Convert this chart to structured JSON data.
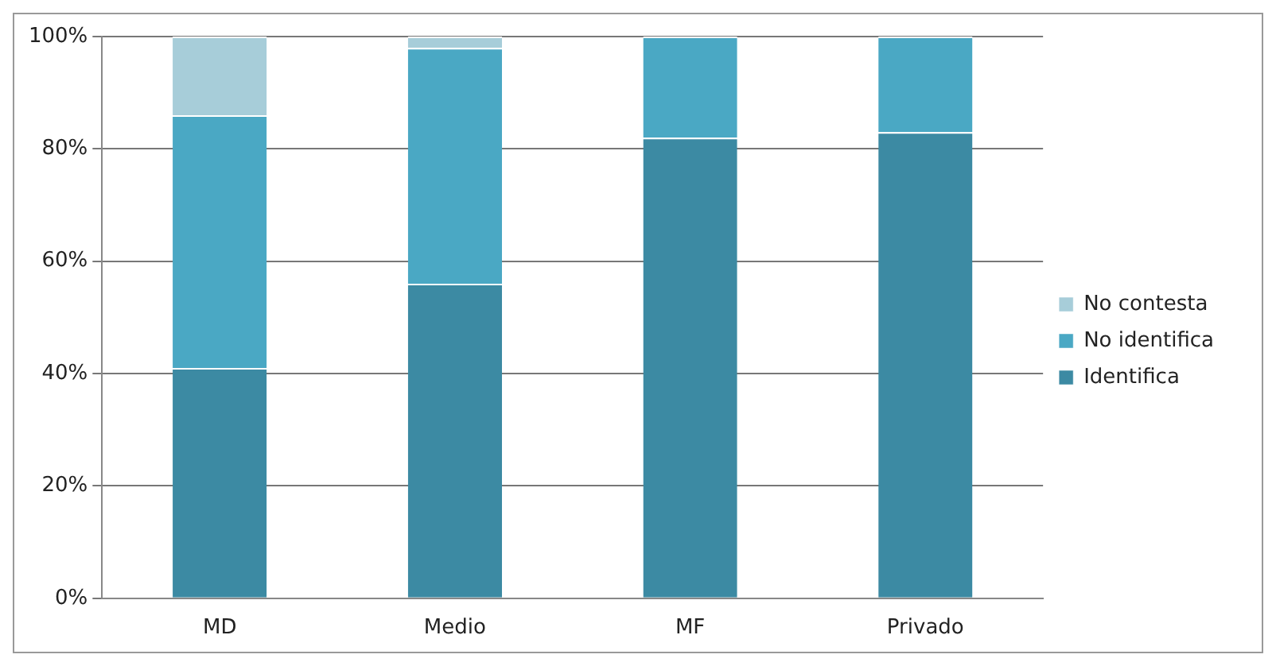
{
  "chart_data": {
    "type": "bar",
    "stacked": true,
    "categories": [
      "MD",
      "Medio",
      "MF",
      "Privado"
    ],
    "series": [
      {
        "name": "Identifica",
        "color": "#3c8aa3",
        "values": [
          41,
          56,
          82,
          83
        ]
      },
      {
        "name": "No identifica",
        "color": "#4aa8c4",
        "values": [
          45,
          42,
          18,
          17
        ]
      },
      {
        "name": "No contesta",
        "color": "#a7cdd9",
        "values": [
          14,
          2,
          0,
          0
        ]
      }
    ],
    "ylim": [
      0,
      100
    ],
    "yticks": [
      {
        "value": 0,
        "label": "0%"
      },
      {
        "value": 20,
        "label": "20%"
      },
      {
        "value": 40,
        "label": "40%"
      },
      {
        "value": 60,
        "label": "60%"
      },
      {
        "value": 80,
        "label": "80%"
      },
      {
        "value": 100,
        "label": "100%"
      }
    ],
    "grid": "y",
    "legend": "right"
  }
}
